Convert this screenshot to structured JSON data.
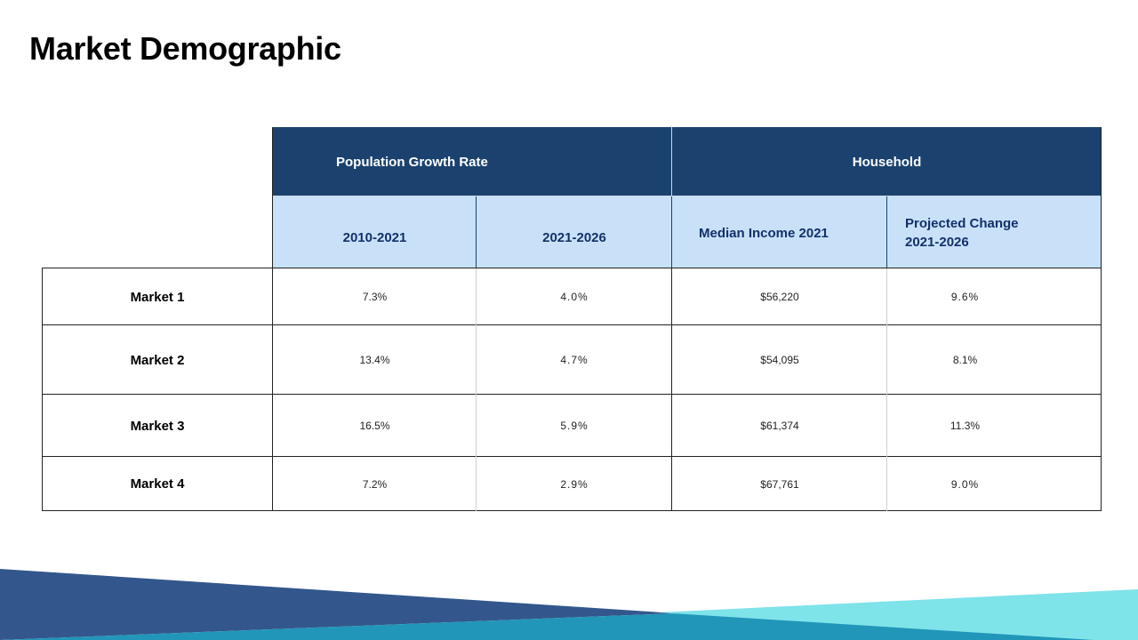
{
  "page": {
    "title": "Market Demographic"
  },
  "table": {
    "group_headers": [
      "Population Growth Rate",
      "Household"
    ],
    "sub_headers": {
      "col1": "2010-2021",
      "col2": "2021-2026",
      "col3": "Median Income 2021",
      "col4_line1": "Projected Change",
      "col4_line2": "2021-2026"
    },
    "rows": [
      {
        "label": "Market 1",
        "values": [
          "7.3%",
          "4.0%",
          "$56,220",
          "9.6%"
        ]
      },
      {
        "label": "Market 2",
        "values": [
          "13.4%",
          "4.7%",
          "$54,095",
          "8.1%"
        ]
      },
      {
        "label": "Market 3",
        "values": [
          "16.5%",
          "5.9%",
          "$61,374",
          "11.3%"
        ]
      },
      {
        "label": "Market 4",
        "values": [
          "7.2%",
          "2.9%",
          "$67,761",
          "9.0%"
        ]
      }
    ]
  },
  "colors": {
    "header_dark": "#1b426e",
    "header_light": "#c9e1f8",
    "footer_navy": "#33578c",
    "footer_teal": "#2196b8",
    "footer_cyan": "#7fe3ea"
  }
}
